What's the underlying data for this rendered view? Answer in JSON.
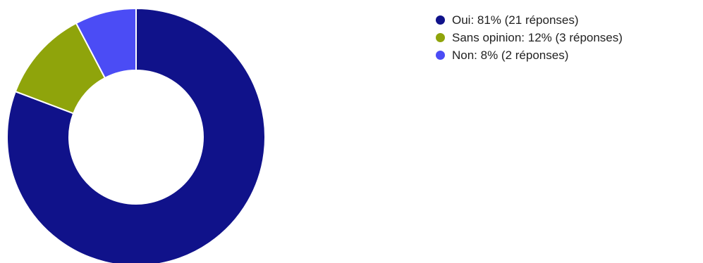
{
  "chart_data": {
    "type": "pie",
    "donut": true,
    "slices": [
      {
        "label": "Oui",
        "percent": 81,
        "responses": 21,
        "color": "#10128a",
        "legend_text": "Oui: 81% (21 réponses)"
      },
      {
        "label": "Sans opinion",
        "percent": 12,
        "responses": 3,
        "color": "#8fa40b",
        "legend_text": "Sans opinion: 12% (3 réponses)"
      },
      {
        "label": "Non",
        "percent": 8,
        "responses": 2,
        "color": "#4b4cf5",
        "legend_text": "Non: 8% (2 réponses)"
      }
    ],
    "legend_position": "top-right"
  }
}
